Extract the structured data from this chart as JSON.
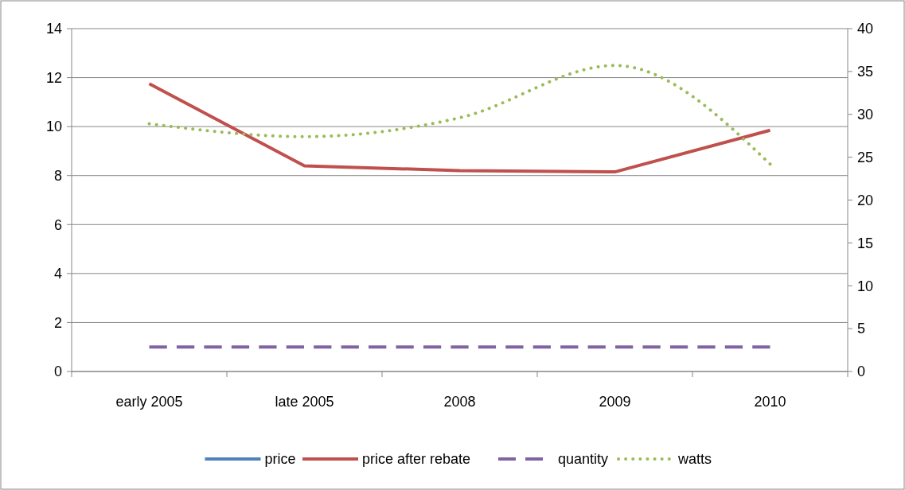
{
  "chart_data": {
    "type": "line",
    "categories": [
      "early 2005",
      "late 2005",
      "2008",
      "2009",
      "2010"
    ],
    "series": [
      {
        "name": "price",
        "color": "#4f81bd",
        "line_style": "solid",
        "values": [
          null,
          null,
          null,
          null,
          null
        ]
      },
      {
        "name": "price after rebate",
        "color": "#c0504d",
        "line_style": "solid",
        "values": [
          11.75,
          8.4,
          8.2,
          8.15,
          9.85
        ]
      },
      {
        "name": "quantity",
        "color": "#8064a2",
        "line_style": "dashed",
        "values": [
          1,
          1,
          1,
          1,
          1
        ]
      },
      {
        "name": "watts",
        "color": "#9bbb59",
        "line_style": "dotted",
        "axis": "y2",
        "values": [
          28.9,
          27.4,
          29.6,
          35.7,
          24.2
        ]
      }
    ],
    "ylim": [
      0,
      14
    ],
    "yticks": [
      0,
      2,
      4,
      6,
      8,
      10,
      12,
      14
    ],
    "y2lim": [
      0,
      40
    ],
    "y2ticks": [
      0,
      5,
      10,
      15,
      20,
      25,
      30,
      35,
      40
    ],
    "grid": "y",
    "legend": "bottom",
    "marker": "none"
  }
}
